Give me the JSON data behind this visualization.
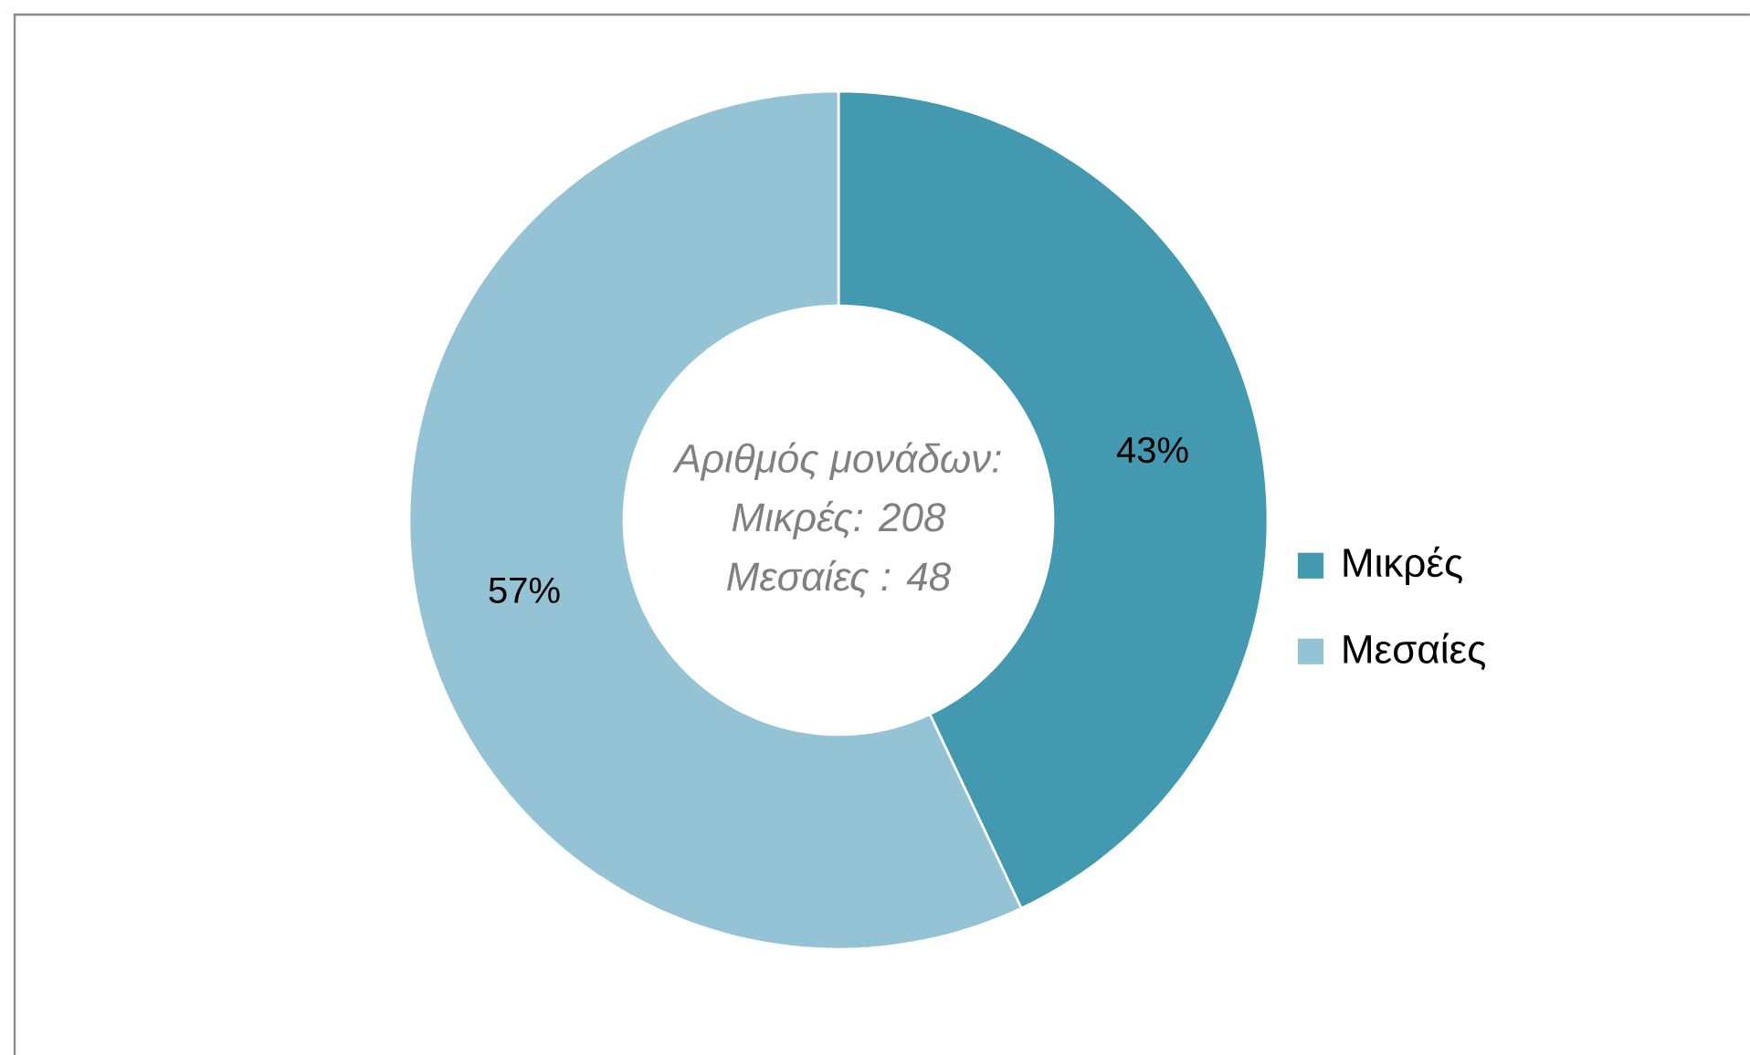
{
  "chart_data": {
    "type": "donut",
    "categories": [
      "Μικρές",
      "Μεσαίες"
    ],
    "values": [
      43,
      57
    ],
    "colors": [
      "#4399b0",
      "#93c3d4"
    ],
    "value_labels": [
      "43%",
      "57%"
    ],
    "legend": "right",
    "annotations": [
      "Αριθμός μονάδων:",
      "Μικρές: 208",
      "Μεσαίες : 48"
    ]
  }
}
